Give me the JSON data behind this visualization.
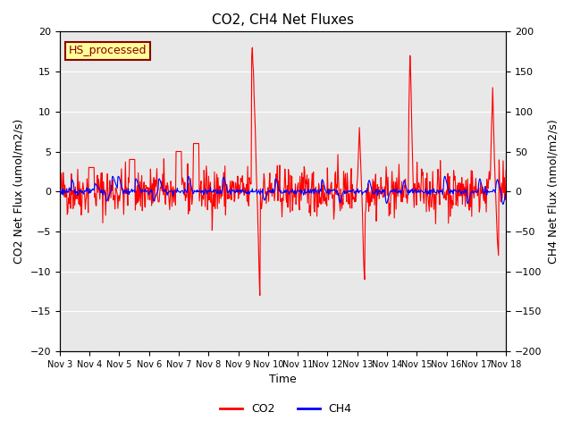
{
  "title": "CO2, CH4 Net Fluxes",
  "xlabel": "Time",
  "ylabel_left": "CO2 Net Flux (umol/m2/s)",
  "ylabel_right": "CH4 Net Flux (nmol/m2/s)",
  "ylim_left": [
    -20,
    20
  ],
  "ylim_right": [
    -200,
    200
  ],
  "yticks_left": [
    -20,
    -15,
    -10,
    -5,
    0,
    5,
    10,
    15,
    20
  ],
  "yticks_right": [
    -200,
    -150,
    -100,
    -50,
    0,
    50,
    100,
    150,
    200
  ],
  "xtick_labels": [
    "Nov 3",
    "Nov 4",
    "Nov 5",
    "Nov 6",
    "Nov 7",
    "Nov 8",
    "Nov 9",
    "Nov 10",
    "Nov 11",
    "Nov 12",
    "Nov 13",
    "Nov 14",
    "Nov 15",
    "Nov 16",
    "Nov 17",
    "Nov 18"
  ],
  "annotation_text": "HS_processed",
  "annotation_color": "#8B0000",
  "annotation_bg": "#FFFF99",
  "co2_color": "#FF0000",
  "ch4_color": "#0000FF",
  "bg_color": "#E8E8E8",
  "legend_co2": "CO2",
  "legend_ch4": "CH4",
  "scale_factor": 10
}
